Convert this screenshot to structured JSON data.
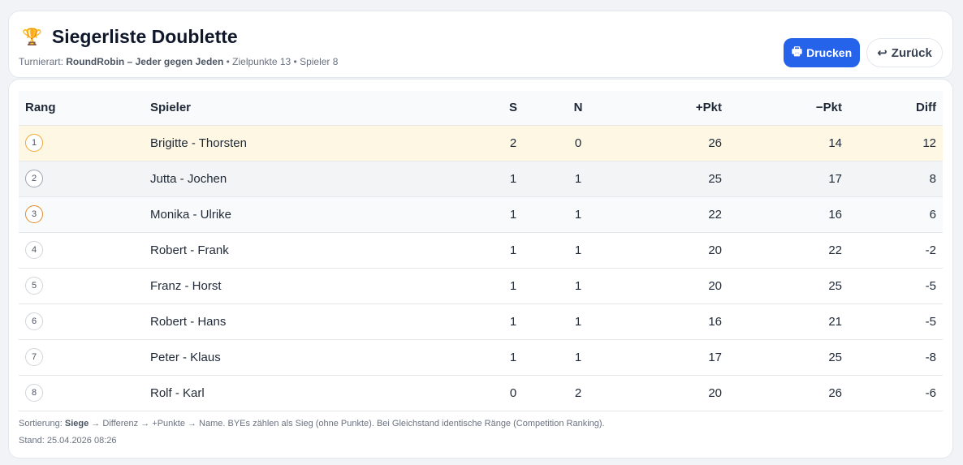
{
  "header": {
    "icon": "trophy-icon",
    "title": "Siegerliste Doublette",
    "sub_label": "Turnierart:",
    "mode": "RoundRobin – Jeder gegen Jeden",
    "sub_rest": " • Zielpunkte 13 • Spieler 8"
  },
  "buttons": {
    "print": "Drucken",
    "print_icon": "printer-icon",
    "back": "Zurück",
    "back_icon": "return-arrow-icon"
  },
  "colors": {
    "accent": "#2563eb",
    "gold": "#f0a830",
    "bronze": "#e0892a"
  },
  "table": {
    "columns": [
      "Rang",
      "Spieler",
      "S",
      "N",
      "+Pkt",
      "−Pkt",
      "Diff"
    ],
    "rows": [
      {
        "rank": "1",
        "player": "Brigitte - Thorsten",
        "s": "2",
        "n": "0",
        "plus": "26",
        "minus": "14",
        "diff": "12"
      },
      {
        "rank": "2",
        "player": "Jutta - Jochen",
        "s": "1",
        "n": "1",
        "plus": "25",
        "minus": "17",
        "diff": "8"
      },
      {
        "rank": "3",
        "player": "Monika - Ulrike",
        "s": "1",
        "n": "1",
        "plus": "22",
        "minus": "16",
        "diff": "6"
      },
      {
        "rank": "4",
        "player": "Robert - Frank",
        "s": "1",
        "n": "1",
        "plus": "20",
        "minus": "22",
        "diff": "-2"
      },
      {
        "rank": "5",
        "player": "Franz - Horst",
        "s": "1",
        "n": "1",
        "plus": "20",
        "minus": "25",
        "diff": "-5"
      },
      {
        "rank": "6",
        "player": "Robert - Hans",
        "s": "1",
        "n": "1",
        "plus": "16",
        "minus": "21",
        "diff": "-5"
      },
      {
        "rank": "7",
        "player": "Peter - Klaus",
        "s": "1",
        "n": "1",
        "plus": "17",
        "minus": "25",
        "diff": "-8"
      },
      {
        "rank": "8",
        "player": "Rolf - Karl",
        "s": "0",
        "n": "2",
        "plus": "20",
        "minus": "26",
        "diff": "-6"
      }
    ]
  },
  "footer": {
    "sort_label": "Sortierung: ",
    "sort_bold": "Siege",
    "sort_rest": " → Differenz → +Punkte → Name. BYEs zählen als Sieg (ohne Punkte). Bei Gleichstand identische Ränge (Competition Ranking).",
    "stand": "Stand: 25.04.2026 08:26"
  }
}
